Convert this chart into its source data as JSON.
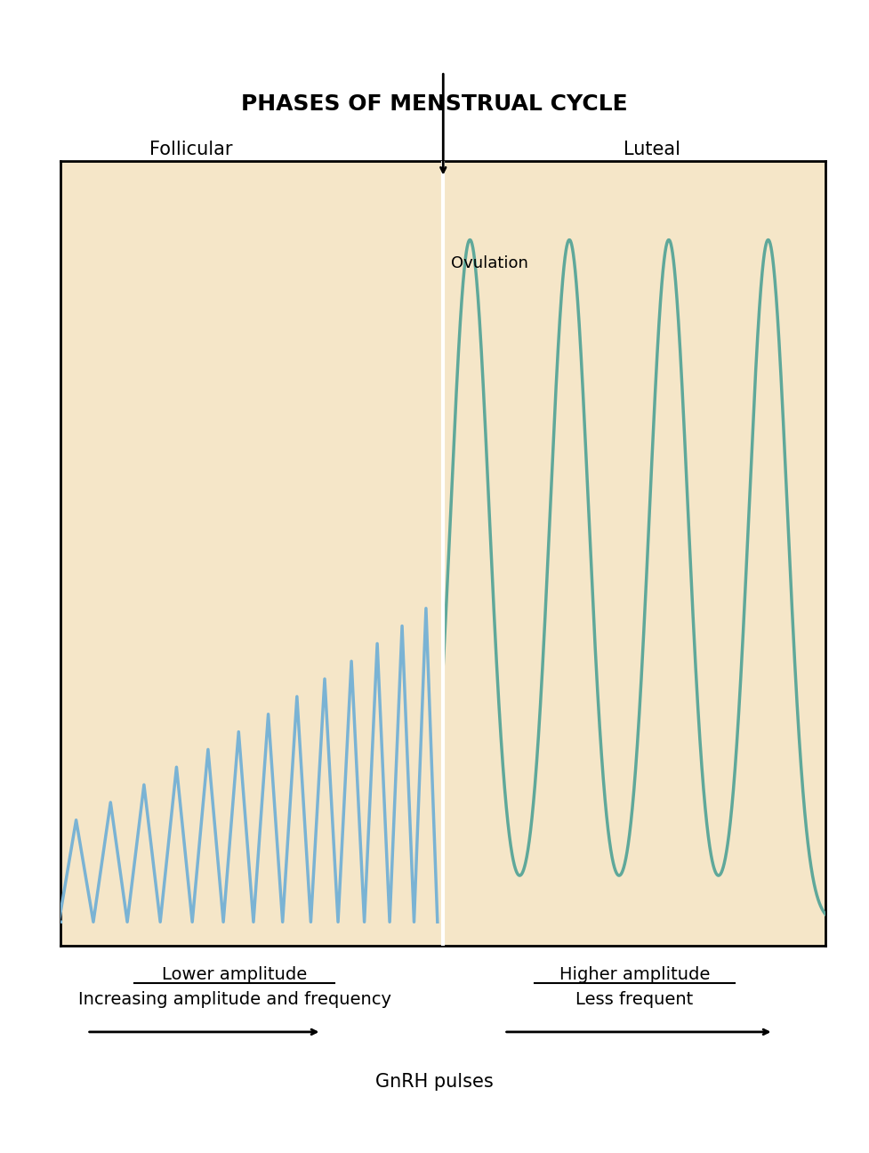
{
  "title": "PHASES OF MENSTRUAL CYCLE",
  "title_fontsize": 18,
  "follicular_label": "Follicular",
  "luteal_label": "Luteal",
  "ovulation_label": "Ovulation",
  "bg_color": "#f5e6c8",
  "outer_bg": "#ffffff",
  "blue_color": "#7ab3d4",
  "teal_color": "#5fa89a",
  "white_line_color": "#ffffff",
  "lower_amplitude_label": "Lower amplitude",
  "increasing_label": "Increasing amplitude and frequency",
  "higher_amplitude_label": "Higher amplitude",
  "less_frequent_label": "Less frequent",
  "gnrh_label": "GnRH pulses",
  "label_fontsize": 14,
  "annotation_fontsize": 13
}
